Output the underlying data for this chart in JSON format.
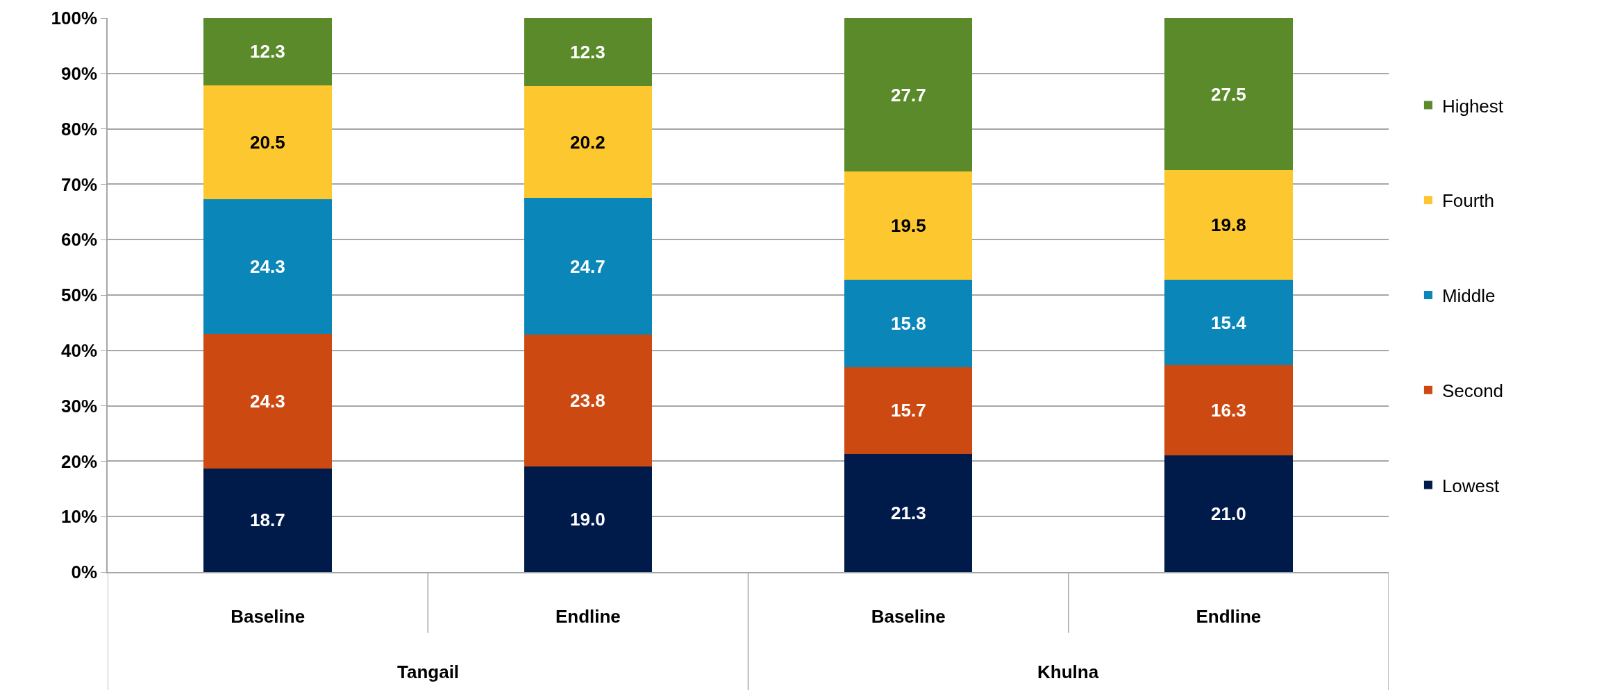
{
  "chart_data": {
    "type": "bar",
    "stacked": true,
    "grid": "y",
    "legend": "right",
    "categories": [
      "Baseline",
      "Endline",
      "Baseline",
      "Endline"
    ],
    "annotations": [
      "Tangail",
      "Khulna"
    ],
    "ylim": [
      0,
      100
    ],
    "yticks": [
      {
        "value": 0,
        "label": "0%"
      },
      {
        "value": 10,
        "label": "10%"
      },
      {
        "value": 20,
        "label": "20%"
      },
      {
        "value": 30,
        "label": "30%"
      },
      {
        "value": 40,
        "label": "40%"
      },
      {
        "value": 50,
        "label": "50%"
      },
      {
        "value": 60,
        "label": "60%"
      },
      {
        "value": 70,
        "label": "70%"
      },
      {
        "value": 80,
        "label": "80%"
      },
      {
        "value": 90,
        "label": "90%"
      },
      {
        "value": 100,
        "label": "100%"
      }
    ],
    "series": [
      {
        "name": "Lowest",
        "color": "#001a4a",
        "values": [
          18.7,
          19.0,
          21.3,
          21.0
        ],
        "value_labels": [
          "18.7",
          "19.0",
          "21.3",
          "21.0"
        ]
      },
      {
        "name": "Second",
        "color": "#cc4a12",
        "values": [
          24.3,
          23.8,
          15.7,
          16.3
        ],
        "value_labels": [
          "24.3",
          "23.8",
          "15.7",
          "16.3"
        ]
      },
      {
        "name": "Middle",
        "color": "#0a86b8",
        "values": [
          24.3,
          24.7,
          15.8,
          15.4
        ],
        "value_labels": [
          "24.3",
          "24.7",
          "15.8",
          "15.4"
        ]
      },
      {
        "name": "Fourth",
        "color": "#fdc82f",
        "values": [
          20.5,
          20.2,
          19.5,
          19.8
        ],
        "value_labels": [
          "20.5",
          "20.2",
          "19.5",
          "19.8"
        ]
      },
      {
        "name": "Highest",
        "color": "#5a8a2a",
        "values": [
          12.3,
          12.3,
          27.7,
          27.5
        ],
        "value_labels": [
          "12.3",
          "12.3",
          "27.7",
          "27.5"
        ]
      }
    ]
  }
}
